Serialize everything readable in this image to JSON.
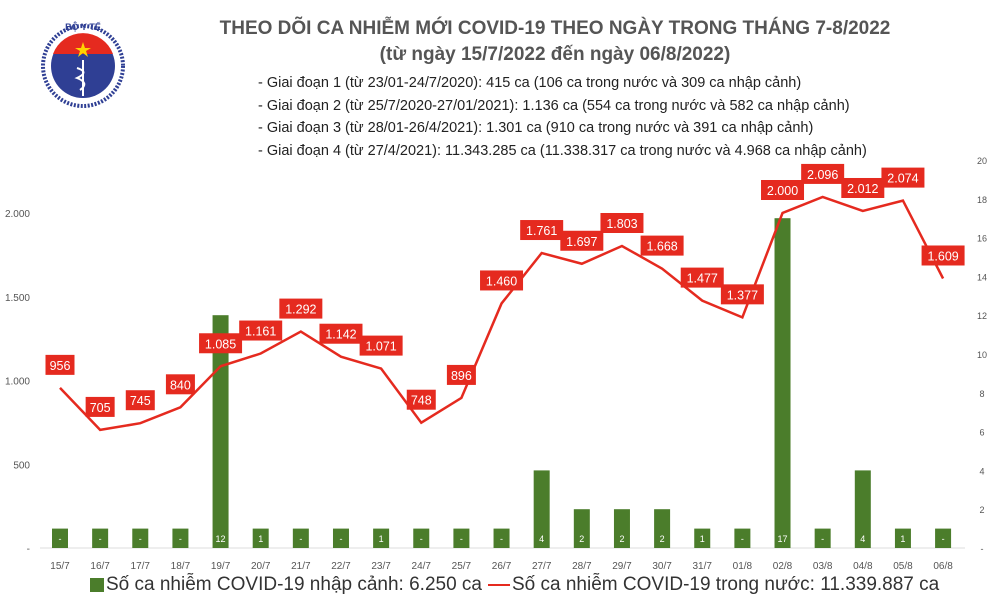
{
  "header": {
    "title": "THEO DÕI CA NHIỄM MỚI COVID-19 THEO NGÀY TRONG THÁNG 7-8/2022",
    "subtitle": "(từ ngày 15/7/2022 đến ngày 06/8/2022)",
    "logo_text": "BỘ Y TẾ MINISTRY OF HEALTH"
  },
  "notes": [
    "- Giai đoạn 1 (từ 23/01-24/7/2020): 415 ca (106 ca trong nước và 309 ca nhập cảnh)",
    "- Giai đoạn 2 (từ 25/7/2020-27/01/2021): 1.136 ca (554 ca trong nước và 582 ca nhập cảnh)",
    "- Giai đoạn 3 (từ 28/01-26/4/2021): 1.301 ca (910 ca trong nước và 391 ca nhập cảnh)",
    "- Giai đoạn 4 (từ 27/4/2021): 11.343.285 ca (11.338.317 ca trong nước và 4.968 ca nhập cảnh)"
  ],
  "colors": {
    "bar": "#4b7d2b",
    "line": "#e52a1f",
    "label_bg": "#e52a1f"
  },
  "chart_data": {
    "type": "bar+line",
    "categories": [
      "15/7",
      "16/7",
      "17/7",
      "18/7",
      "19/7",
      "20/7",
      "21/7",
      "22/7",
      "23/7",
      "24/7",
      "25/7",
      "26/7",
      "27/7",
      "28/7",
      "29/7",
      "30/7",
      "31/7",
      "01/8",
      "02/8",
      "03/8",
      "04/8",
      "05/8",
      "06/8"
    ],
    "series": [
      {
        "name": "Số ca nhiễm COVID-19 nhập cảnh: 6.250 ca",
        "type": "bar",
        "axis": "right",
        "values": [
          0,
          0,
          0,
          0,
          12,
          1,
          0,
          0,
          1,
          0,
          0,
          0,
          4,
          2,
          2,
          2,
          1,
          0,
          17,
          0,
          4,
          1,
          0
        ]
      },
      {
        "name": "Số ca nhiễm COVID-19 trong nước: 11.339.887 ca",
        "type": "line",
        "axis": "left",
        "values": [
          956,
          705,
          745,
          840,
          1085,
          1161,
          1292,
          1142,
          1071,
          748,
          896,
          1460,
          1761,
          1697,
          1803,
          1668,
          1477,
          1377,
          2000,
          2096,
          2012,
          2074,
          1609
        ]
      }
    ],
    "left_axis": {
      "ticks": [
        "-",
        "500",
        "1.000",
        "1.500",
        "2.000"
      ],
      "tick_values": [
        0,
        500,
        1000,
        1500,
        2000
      ]
    },
    "right_axis": {
      "ticks": [
        "-",
        "2",
        "4",
        "6",
        "8",
        "10",
        "12",
        "14",
        "16",
        "18",
        "20"
      ],
      "tick_values": [
        0,
        2,
        4,
        6,
        8,
        10,
        12,
        14,
        16,
        18,
        20
      ],
      "ylim": [
        0,
        20
      ]
    },
    "zero_label": "-",
    "legend_placement": "bottom",
    "grid": false
  }
}
